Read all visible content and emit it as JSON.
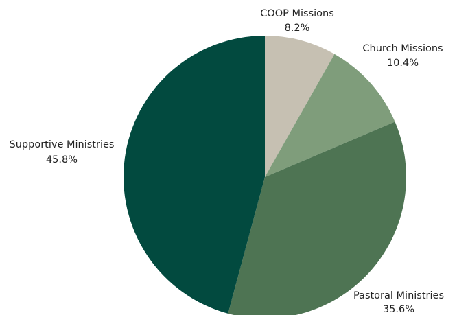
{
  "chart_data": {
    "type": "pie",
    "start_angle_deg": 0,
    "direction": "clockwise",
    "slices": [
      {
        "label": "COOP Missions",
        "value": 8.2,
        "value_label": "8.2%",
        "color": "#c6c0b2"
      },
      {
        "label": "Church Missions",
        "value": 10.4,
        "value_label": "10.4%",
        "color": "#7f9d7b"
      },
      {
        "label": "Pastoral Ministries",
        "value": 35.6,
        "value_label": "35.6%",
        "color": "#4e7453"
      },
      {
        "label": "Supportive Ministries",
        "value": 45.8,
        "value_label": "45.8%",
        "color": "#024a3f"
      }
    ]
  }
}
